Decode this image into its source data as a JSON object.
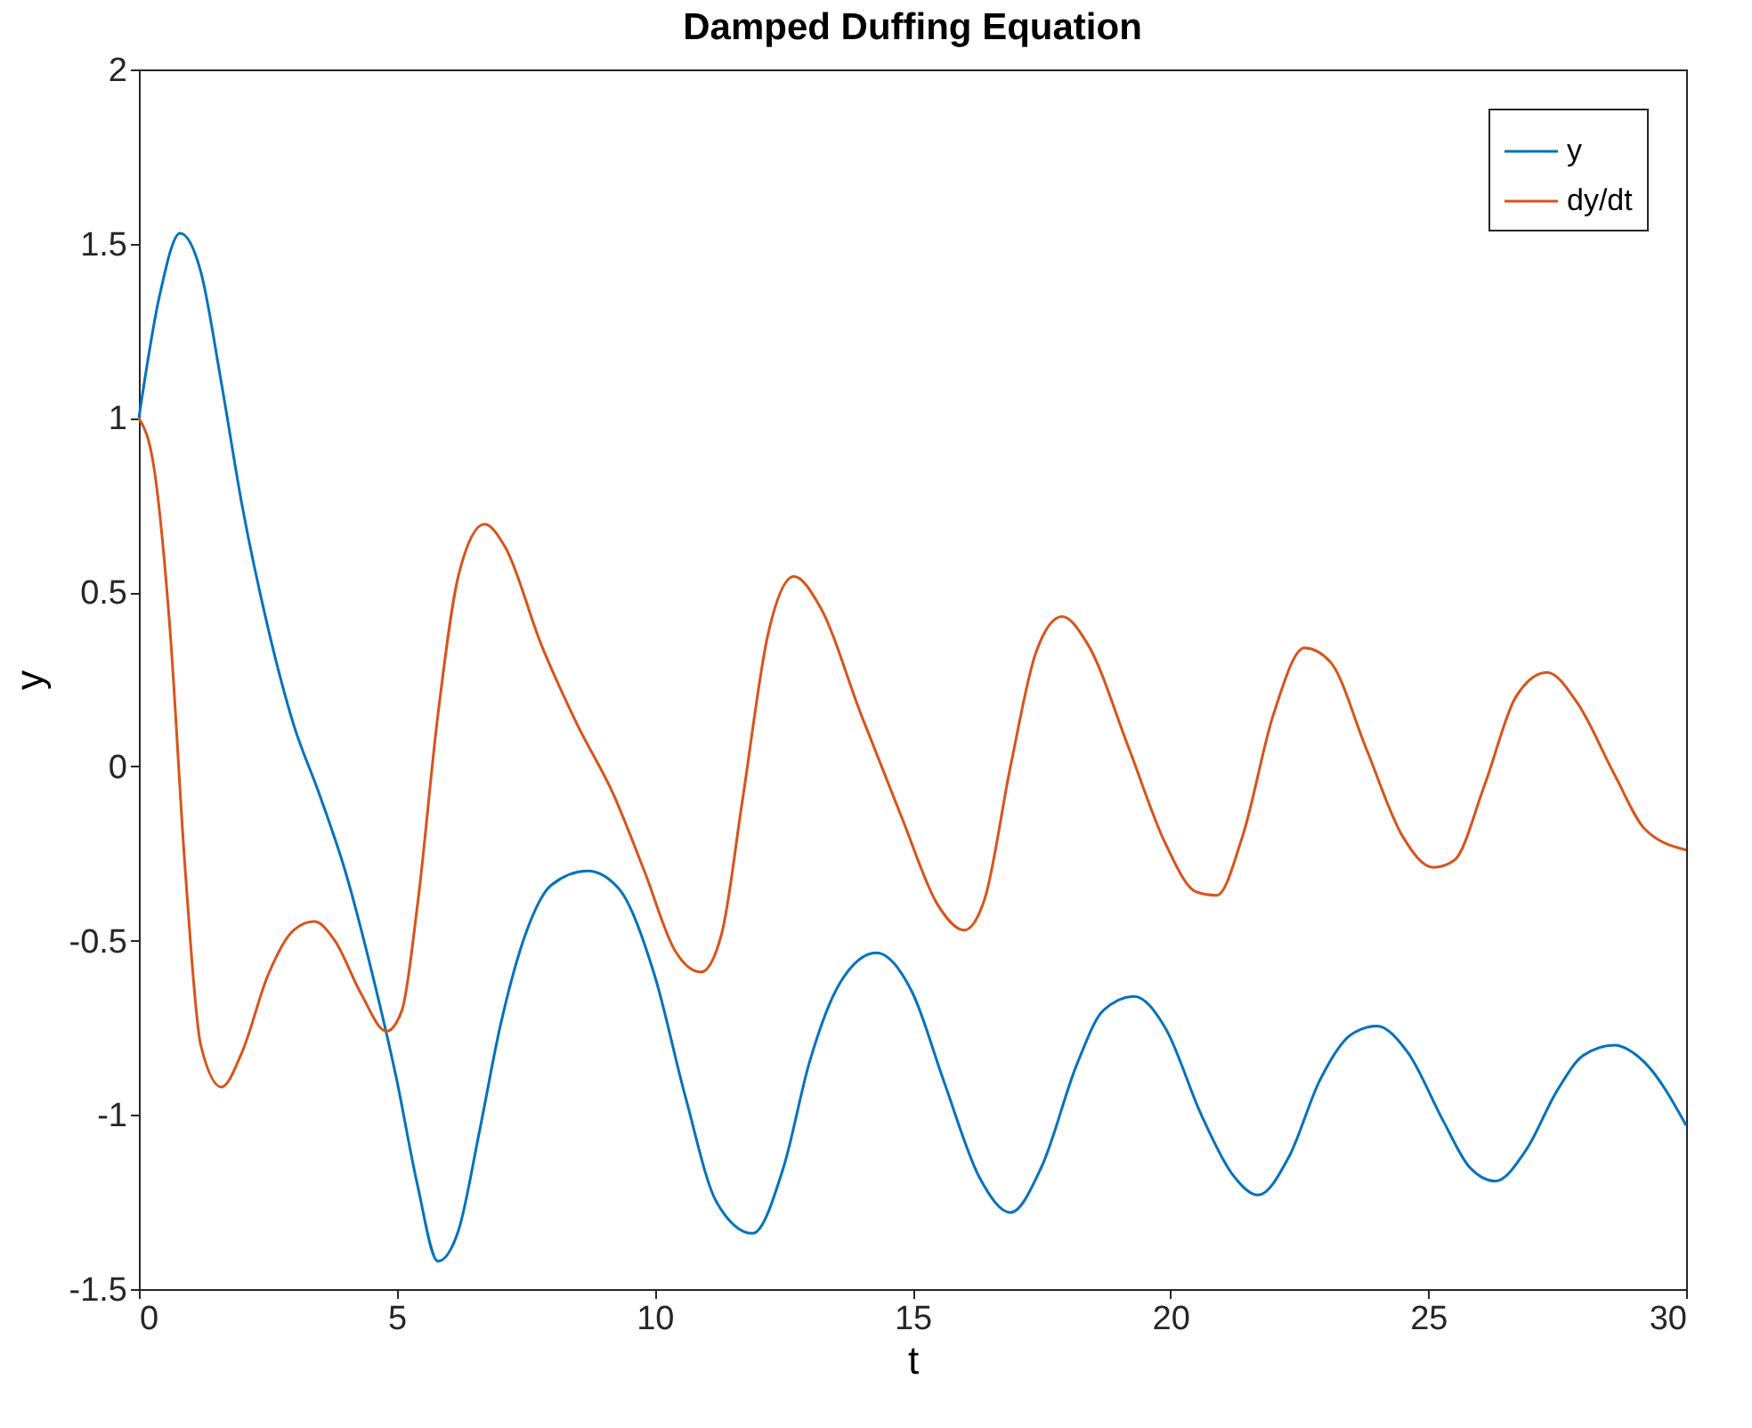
{
  "chart_data": {
    "type": "line",
    "title": "Damped Duffing Equation",
    "xlabel": "t",
    "ylabel": "y",
    "xlim": [
      0,
      30
    ],
    "xticks": [
      0,
      5,
      10,
      15,
      20,
      25,
      30
    ],
    "ylim": [
      -1.5,
      2
    ],
    "yticks": [
      -1.5,
      -1,
      -0.5,
      0,
      0.5,
      1,
      1.5,
      2
    ],
    "grid": false,
    "legend": "top right",
    "marker": "none",
    "line_style": "solid",
    "series": [
      {
        "name": "y",
        "color": "#0072bd",
        "x": [
          0,
          0.4,
          0.8,
          1.2,
          1.6,
          2.0,
          2.5,
          3.0,
          3.5,
          4.0,
          4.5,
          5.0,
          5.4,
          5.8,
          6.2,
          6.6,
          7.0,
          7.5,
          8.0,
          8.7,
          9.3,
          10.0,
          10.6,
          11.2,
          11.9,
          12.5,
          13.0,
          13.6,
          14.3,
          15.0,
          15.6,
          16.3,
          16.9,
          17.5,
          18.2,
          18.7,
          19.3,
          19.9,
          20.6,
          21.2,
          21.7,
          22.3,
          22.9,
          23.5,
          24.0,
          24.6,
          25.3,
          25.8,
          26.3,
          26.9,
          27.5,
          28.0,
          28.6,
          29.2,
          30
        ],
        "values": [
          1.0,
          1.35,
          1.53,
          1.42,
          1.1,
          0.75,
          0.4,
          0.12,
          -0.08,
          -0.3,
          -0.58,
          -0.9,
          -1.2,
          -1.42,
          -1.33,
          -1.05,
          -0.75,
          -0.48,
          -0.34,
          -0.3,
          -0.35,
          -0.6,
          -0.95,
          -1.25,
          -1.34,
          -1.15,
          -0.85,
          -0.62,
          -0.535,
          -0.65,
          -0.9,
          -1.18,
          -1.28,
          -1.15,
          -0.85,
          -0.7,
          -0.66,
          -0.75,
          -1.0,
          -1.17,
          -1.23,
          -1.12,
          -0.9,
          -0.77,
          -0.745,
          -0.82,
          -1.02,
          -1.15,
          -1.19,
          -1.1,
          -0.93,
          -0.83,
          -0.8,
          -0.85,
          -1.03
        ]
      },
      {
        "name": "dy/dt",
        "color": "#d95319",
        "x": [
          0,
          0.3,
          0.6,
          0.9,
          1.2,
          1.6,
          2.0,
          2.5,
          3.0,
          3.4,
          3.8,
          4.3,
          4.8,
          5.1,
          5.4,
          5.8,
          6.2,
          6.7,
          7.1,
          7.8,
          8.5,
          9.2,
          9.8,
          10.4,
          10.9,
          11.3,
          11.7,
          12.2,
          12.7,
          13.2,
          14.0,
          14.8,
          15.5,
          16.0,
          16.4,
          16.9,
          17.4,
          17.9,
          18.4,
          19.2,
          19.9,
          20.5,
          20.9,
          21.4,
          22.0,
          22.6,
          23.1,
          23.8,
          24.5,
          25.1,
          25.5,
          26.1,
          26.7,
          27.3,
          27.9,
          28.6,
          29.2,
          30
        ],
        "values": [
          1.0,
          0.85,
          0.4,
          -0.3,
          -0.8,
          -0.92,
          -0.82,
          -0.6,
          -0.47,
          -0.445,
          -0.5,
          -0.65,
          -0.76,
          -0.7,
          -0.4,
          0.15,
          0.55,
          0.695,
          0.63,
          0.35,
          0.12,
          -0.08,
          -0.3,
          -0.53,
          -0.59,
          -0.48,
          -0.1,
          0.38,
          0.545,
          0.46,
          0.15,
          -0.15,
          -0.4,
          -0.47,
          -0.38,
          0.0,
          0.33,
          0.43,
          0.35,
          0.05,
          -0.22,
          -0.36,
          -0.37,
          -0.2,
          0.15,
          0.34,
          0.3,
          0.05,
          -0.2,
          -0.29,
          -0.27,
          -0.05,
          0.2,
          0.27,
          0.18,
          -0.02,
          -0.18,
          -0.24
        ]
      }
    ]
  }
}
